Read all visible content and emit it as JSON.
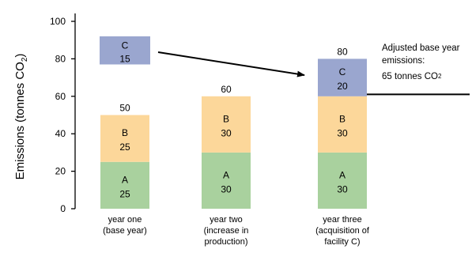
{
  "chart_data": {
    "type": "bar",
    "stacked": true,
    "ylabel": "Emissions (tonnes CO",
    "ylabel_sub": "2",
    "ylabel_tail": ")",
    "ylim": [
      0,
      100
    ],
    "yticks": [
      0,
      20,
      40,
      60,
      80,
      100
    ],
    "grid": false,
    "categories": [
      [
        "year one",
        "(base year)"
      ],
      [
        "year two",
        "(increase in",
        "production)"
      ],
      [
        "year three",
        "(acquisition of",
        "facility C)"
      ]
    ],
    "series": [
      {
        "name": "A",
        "color": "#a9d19e",
        "values": [
          25,
          30,
          30
        ]
      },
      {
        "name": "B",
        "color": "#fcd79a",
        "values": [
          25,
          30,
          30
        ]
      },
      {
        "name": "C",
        "color": "#9aa6cf",
        "values": [
          0,
          0,
          20
        ]
      }
    ],
    "totals": [
      "50",
      "60",
      "80"
    ],
    "floating_segment": {
      "name": "C",
      "value": "15",
      "color": "#9aa6cf",
      "from": 77,
      "to": 92,
      "category": 0
    },
    "annotation": {
      "lines": [
        "Adjusted base year",
        "emissions:"
      ],
      "value_line": "65 tonnes CO",
      "value_sub": "2",
      "ref_value": 61
    }
  }
}
